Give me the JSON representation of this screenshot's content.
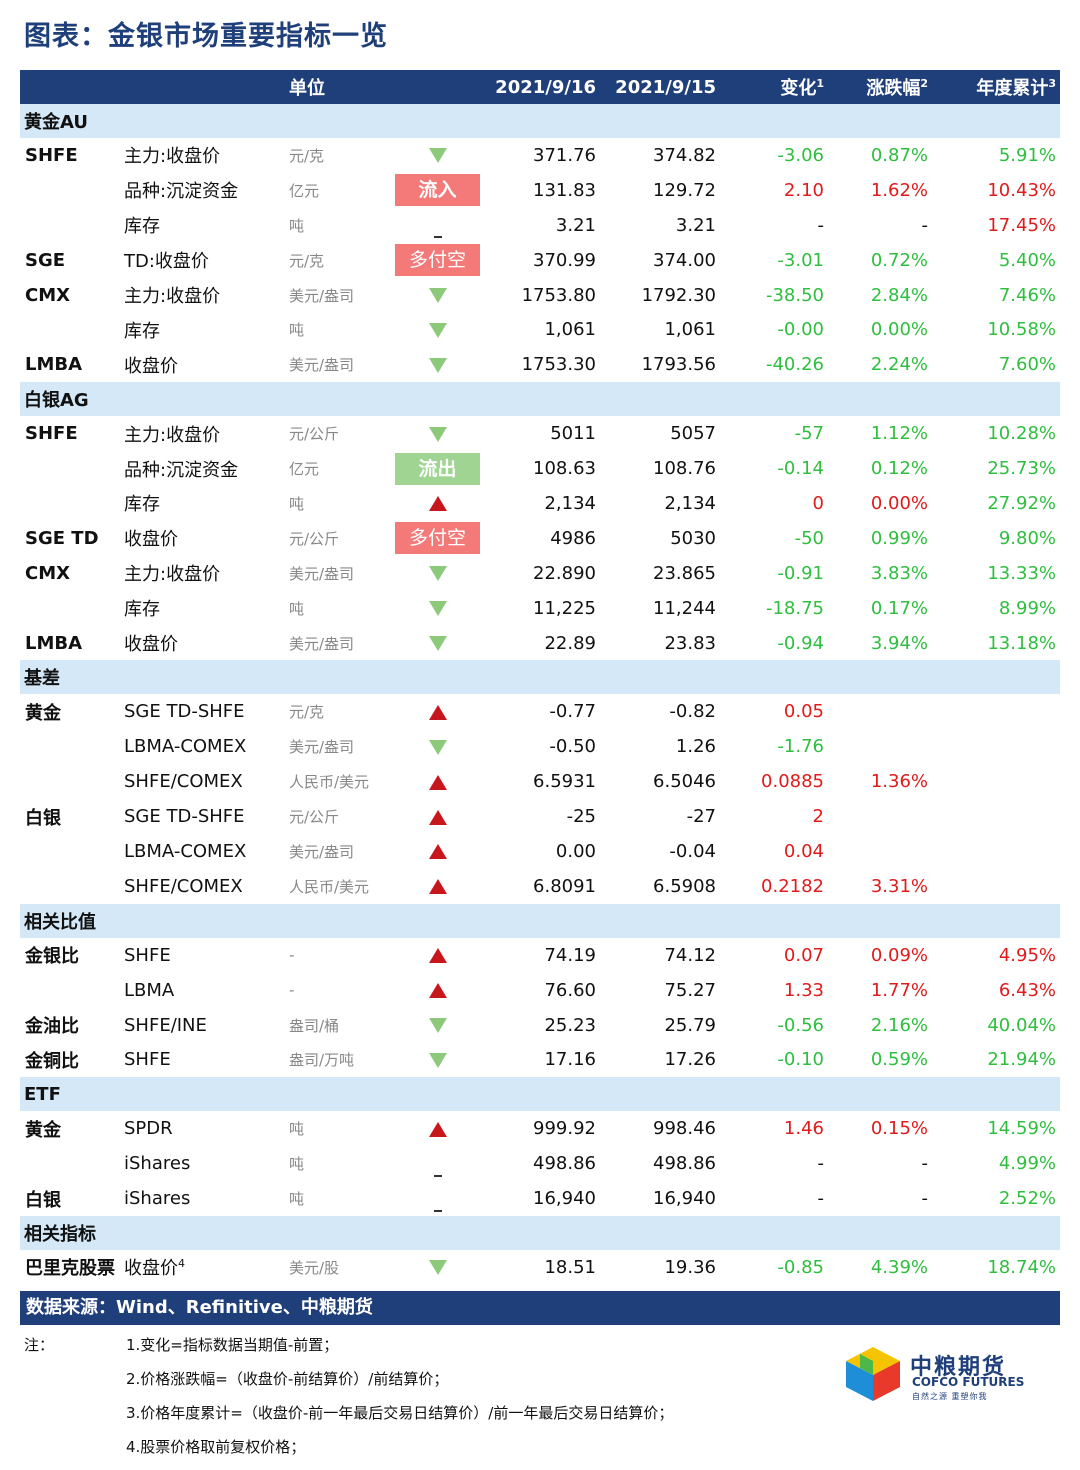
{
  "title": "图表：金银市场重要指标一览",
  "header": {
    "col0": "",
    "col1": "",
    "unit": "单位",
    "col3": "",
    "d1": "2021/9/16",
    "d2": "2021/9/15",
    "chg": "变化",
    "chg_sup": "1",
    "pct": "涨跌幅",
    "pct_sup": "2",
    "ytd": "年度累计",
    "ytd_sup": "3"
  },
  "sections": [
    {
      "label": "黄金AU",
      "rows": [
        {
          "org": "SHFE",
          "item": "主力:收盘价",
          "unit": "元/克",
          "ind": "down",
          "d1": "371.76",
          "d2": "374.82",
          "chg": "-3.06",
          "chg_c": "green",
          "pct": "0.87%",
          "pct_c": "green",
          "ytd": "5.91%",
          "ytd_c": "green"
        },
        {
          "org": "",
          "item": "品种:沉淀资金",
          "unit": "亿元",
          "ind": "badge",
          "badge_text": "流入",
          "badge_type": "in",
          "d1": "131.83",
          "d2": "129.72",
          "chg": "2.10",
          "chg_c": "red",
          "pct": "1.62%",
          "pct_c": "red",
          "ytd": "10.43%",
          "ytd_c": "red"
        },
        {
          "org": "",
          "item": "库存",
          "unit": "吨",
          "ind": "flat",
          "d1": "3.21",
          "d2": "3.21",
          "chg": "-",
          "chg_c": "",
          "pct": "-",
          "pct_c": "",
          "ytd": "17.45%",
          "ytd_c": "red"
        },
        {
          "org": "SGE",
          "item": "TD:收盘价",
          "unit": "元/克",
          "ind": "badge",
          "badge_text": "多付空",
          "badge_type": "pay",
          "d1": "370.99",
          "d2": "374.00",
          "chg": "-3.01",
          "chg_c": "green",
          "pct": "0.72%",
          "pct_c": "green",
          "ytd": "5.40%",
          "ytd_c": "green"
        },
        {
          "org": "CMX",
          "item": "主力:收盘价",
          "unit": "美元/盎司",
          "ind": "down",
          "d1": "1753.80",
          "d2": "1792.30",
          "chg": "-38.50",
          "chg_c": "green",
          "pct": "2.84%",
          "pct_c": "green",
          "ytd": "7.46%",
          "ytd_c": "green"
        },
        {
          "org": "",
          "item": "库存",
          "unit": "吨",
          "ind": "down",
          "d1": "1,061",
          "d2": "1,061",
          "chg": "-0.00",
          "chg_c": "green",
          "pct": "0.00%",
          "pct_c": "green",
          "ytd": "10.58%",
          "ytd_c": "green"
        },
        {
          "org": "LMBA",
          "item": "收盘价",
          "unit": "美元/盎司",
          "ind": "down",
          "d1": "1753.30",
          "d2": "1793.56",
          "chg": "-40.26",
          "chg_c": "green",
          "pct": "2.24%",
          "pct_c": "green",
          "ytd": "7.60%",
          "ytd_c": "green"
        }
      ]
    },
    {
      "label": "白银AG",
      "rows": [
        {
          "org": "SHFE",
          "item": "主力:收盘价",
          "unit": "元/公斤",
          "ind": "down",
          "d1": "5011",
          "d2": "5057",
          "chg": "-57",
          "chg_c": "green",
          "pct": "1.12%",
          "pct_c": "green",
          "ytd": "10.28%",
          "ytd_c": "green"
        },
        {
          "org": "",
          "item": "品种:沉淀资金",
          "unit": "亿元",
          "ind": "badge",
          "badge_text": "流出",
          "badge_type": "out",
          "d1": "108.63",
          "d2": "108.76",
          "chg": "-0.14",
          "chg_c": "green",
          "pct": "0.12%",
          "pct_c": "green",
          "ytd": "25.73%",
          "ytd_c": "green"
        },
        {
          "org": "",
          "item": "库存",
          "unit": "吨",
          "ind": "up",
          "d1": "2,134",
          "d2": "2,134",
          "chg": "0",
          "chg_c": "red",
          "pct": "0.00%",
          "pct_c": "red",
          "ytd": "27.92%",
          "ytd_c": "green"
        },
        {
          "org": "SGE TD",
          "item": "收盘价",
          "unit": "元/公斤",
          "ind": "badge",
          "badge_text": "多付空",
          "badge_type": "pay",
          "d1": "4986",
          "d2": "5030",
          "chg": "-50",
          "chg_c": "green",
          "pct": "0.99%",
          "pct_c": "green",
          "ytd": "9.80%",
          "ytd_c": "green"
        },
        {
          "org": "CMX",
          "item": "主力:收盘价",
          "unit": "美元/盎司",
          "ind": "down",
          "d1": "22.890",
          "d2": "23.865",
          "chg": "-0.91",
          "chg_c": "green",
          "pct": "3.83%",
          "pct_c": "green",
          "ytd": "13.33%",
          "ytd_c": "green"
        },
        {
          "org": "",
          "item": "库存",
          "unit": "吨",
          "ind": "down",
          "d1": "11,225",
          "d2": "11,244",
          "chg": "-18.75",
          "chg_c": "green",
          "pct": "0.17%",
          "pct_c": "green",
          "ytd": "8.99%",
          "ytd_c": "green"
        },
        {
          "org": "LMBA",
          "item": "收盘价",
          "unit": "美元/盎司",
          "ind": "down",
          "d1": "22.89",
          "d2": "23.83",
          "chg": "-0.94",
          "chg_c": "green",
          "pct": "3.94%",
          "pct_c": "green",
          "ytd": "13.18%",
          "ytd_c": "green"
        }
      ]
    },
    {
      "label": "基差",
      "rows": [
        {
          "org": "黄金",
          "item": "SGE TD-SHFE",
          "unit": "元/克",
          "ind": "up",
          "d1": "-0.77",
          "d2": "-0.82",
          "chg": "0.05",
          "chg_c": "red",
          "pct": "",
          "pct_c": "",
          "ytd": "",
          "ytd_c": ""
        },
        {
          "org": "",
          "item": "LBMA-COMEX",
          "unit": "美元/盎司",
          "ind": "down",
          "d1": "-0.50",
          "d2": "1.26",
          "chg": "-1.76",
          "chg_c": "green",
          "pct": "",
          "pct_c": "",
          "ytd": "",
          "ytd_c": ""
        },
        {
          "org": "",
          "item": "SHFE/COMEX",
          "unit": "人民币/美元",
          "ind": "up",
          "d1": "6.5931",
          "d2": "6.5046",
          "chg": "0.0885",
          "chg_c": "red",
          "pct": "1.36%",
          "pct_c": "red",
          "ytd": "",
          "ytd_c": ""
        },
        {
          "org": "白银",
          "item": "SGE TD-SHFE",
          "unit": "元/公斤",
          "ind": "up",
          "d1": "-25",
          "d2": "-27",
          "chg": "2",
          "chg_c": "red",
          "pct": "",
          "pct_c": "",
          "ytd": "",
          "ytd_c": ""
        },
        {
          "org": "",
          "item": "LBMA-COMEX",
          "unit": "美元/盎司",
          "ind": "up",
          "d1": "0.00",
          "d2": "-0.04",
          "chg": "0.04",
          "chg_c": "red",
          "pct": "",
          "pct_c": "",
          "ytd": "",
          "ytd_c": ""
        },
        {
          "org": "",
          "item": "SHFE/COMEX",
          "unit": "人民币/美元",
          "ind": "up",
          "d1": "6.8091",
          "d2": "6.5908",
          "chg": "0.2182",
          "chg_c": "red",
          "pct": "3.31%",
          "pct_c": "red",
          "ytd": "",
          "ytd_c": ""
        }
      ]
    },
    {
      "label": "相关比值",
      "rows": [
        {
          "org": "金银比",
          "item": "SHFE",
          "unit": "-",
          "ind": "up",
          "d1": "74.19",
          "d2": "74.12",
          "chg": "0.07",
          "chg_c": "red",
          "pct": "0.09%",
          "pct_c": "red",
          "ytd": "4.95%",
          "ytd_c": "red"
        },
        {
          "org": "",
          "item": "LBMA",
          "unit": "-",
          "ind": "up",
          "d1": "76.60",
          "d2": "75.27",
          "chg": "1.33",
          "chg_c": "red",
          "pct": "1.77%",
          "pct_c": "red",
          "ytd": "6.43%",
          "ytd_c": "red"
        },
        {
          "org": "金油比",
          "item": "SHFE/INE",
          "unit": "盎司/桶",
          "ind": "down",
          "d1": "25.23",
          "d2": "25.79",
          "chg": "-0.56",
          "chg_c": "green",
          "pct": "2.16%",
          "pct_c": "green",
          "ytd": "40.04%",
          "ytd_c": "green"
        },
        {
          "org": "金铜比",
          "item": "SHFE",
          "unit": "盎司/万吨",
          "ind": "down",
          "d1": "17.16",
          "d2": "17.26",
          "chg": "-0.10",
          "chg_c": "green",
          "pct": "0.59%",
          "pct_c": "green",
          "ytd": "21.94%",
          "ytd_c": "green"
        }
      ]
    },
    {
      "label": "ETF",
      "rows": [
        {
          "org": "黄金",
          "item": "SPDR",
          "unit": "吨",
          "ind": "up",
          "d1": "999.92",
          "d2": "998.46",
          "chg": "1.46",
          "chg_c": "red",
          "pct": "0.15%",
          "pct_c": "red",
          "ytd": "14.59%",
          "ytd_c": "green"
        },
        {
          "org": "",
          "item": "iShares",
          "unit": "吨",
          "ind": "flat",
          "d1": "498.86",
          "d2": "498.86",
          "chg": "-",
          "chg_c": "",
          "pct": "-",
          "pct_c": "",
          "ytd": "4.99%",
          "ytd_c": "green"
        },
        {
          "org": "白银",
          "item": "iShares",
          "unit": "吨",
          "ind": "flat",
          "d1": "16,940",
          "d2": "16,940",
          "chg": "-",
          "chg_c": "",
          "pct": "-",
          "pct_c": "",
          "ytd": "2.52%",
          "ytd_c": "green"
        }
      ]
    },
    {
      "label": "相关指标",
      "rows": [
        {
          "org": "巴里克股票",
          "item": "收盘价",
          "item_sup": "4",
          "unit": "美元/股",
          "ind": "down",
          "d1": "18.51",
          "d2": "19.36",
          "chg": "-0.85",
          "chg_c": "green",
          "pct": "4.39%",
          "pct_c": "green",
          "ytd": "18.74%",
          "ytd_c": "green"
        }
      ]
    }
  ],
  "footer": "数据来源：Wind、Refinitive、中粮期货",
  "notes_label": "注：",
  "notes": [
    "1.变化=指标数据当期值-前置；",
    "2.价格涨跌幅=（收盘价-前结算价）/前结算价；",
    "3.价格年度累计=（收盘价-前一年最后交易日结算价）/前一年最后交易日结算价；",
    "4.股票价格取前复权价格；"
  ],
  "logo": {
    "cn": "中粮期货",
    "en": "COFCO FUTURES",
    "sub": "自然之源  重塑你我",
    "colors": [
      "#f5c400",
      "#4cb848",
      "#e8392b",
      "#1e8fd6"
    ]
  }
}
